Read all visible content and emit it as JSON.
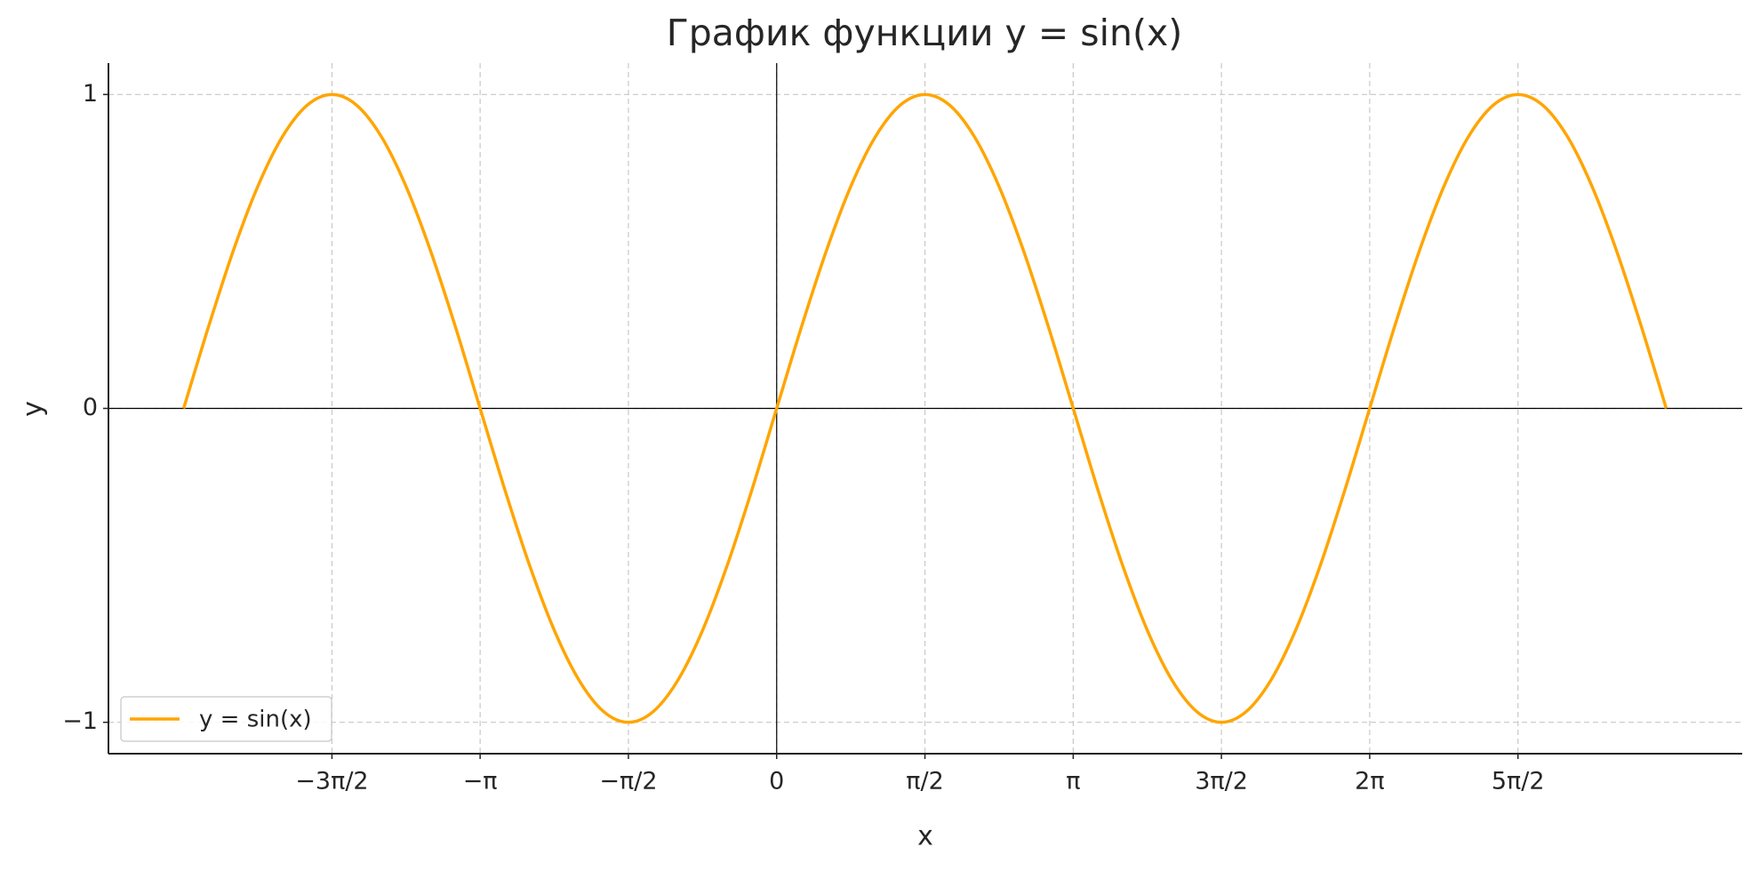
{
  "chart_data": {
    "type": "line",
    "title": "График функции y = sin(x)",
    "x_label": "x",
    "y_label": "y",
    "x": [
      -6.283,
      -6.021,
      -5.76,
      -5.498,
      -5.236,
      -4.974,
      -4.712,
      -4.451,
      -4.189,
      -3.927,
      -3.665,
      -3.403,
      -3.142,
      -2.88,
      -2.618,
      -2.356,
      -2.094,
      -1.833,
      -1.571,
      -1.309,
      -1.047,
      -0.785,
      -0.524,
      -0.262,
      0,
      0.262,
      0.524,
      0.785,
      1.047,
      1.309,
      1.571,
      1.833,
      2.094,
      2.356,
      2.618,
      2.88,
      3.142,
      3.403,
      3.665,
      3.927,
      4.189,
      4.451,
      4.712,
      4.974,
      5.236,
      5.498,
      5.76,
      6.021,
      6.283,
      6.545,
      6.807,
      7.069,
      7.33,
      7.592,
      7.854,
      8.116,
      8.378,
      8.639,
      8.901,
      9.163,
      9.425
    ],
    "series": [
      {
        "name": "y = sin(x)",
        "color": "#ffa500",
        "values": [
          0,
          0.259,
          0.5,
          0.707,
          0.866,
          0.966,
          1,
          0.966,
          0.866,
          0.707,
          0.5,
          0.259,
          0,
          -0.259,
          -0.5,
          -0.707,
          -0.866,
          -0.966,
          -1,
          -0.966,
          -0.866,
          -0.707,
          -0.5,
          -0.259,
          0,
          0.259,
          0.5,
          0.707,
          0.866,
          0.966,
          1,
          0.966,
          0.866,
          0.707,
          0.5,
          0.259,
          0,
          -0.259,
          -0.5,
          -0.707,
          -0.866,
          -0.966,
          -1,
          -0.966,
          -0.866,
          -0.707,
          -0.5,
          -0.259,
          0,
          0.259,
          0.5,
          0.707,
          0.866,
          0.966,
          1,
          0.966,
          0.866,
          0.707,
          0.5,
          0.259,
          0
        ]
      }
    ],
    "xlim": [
      -7.08,
      10.23
    ],
    "ylim": [
      -1.1,
      1.1
    ],
    "xticks": [
      {
        "value": -4.712,
        "label": "−3π/2"
      },
      {
        "value": -3.142,
        "label": "−π"
      },
      {
        "value": -1.571,
        "label": "−π/2"
      },
      0,
      {
        "value": 1.571,
        "label": "π/2"
      },
      {
        "value": 3.142,
        "label": "π"
      },
      {
        "value": 4.712,
        "label": "3π/2"
      },
      {
        "value": 6.283,
        "label": "2π"
      },
      {
        "value": 7.854,
        "label": "5π/2"
      }
    ],
    "yticks": [
      {
        "value": -1,
        "label": "−1"
      },
      0,
      1
    ],
    "grid": true,
    "legend": "lower left"
  }
}
